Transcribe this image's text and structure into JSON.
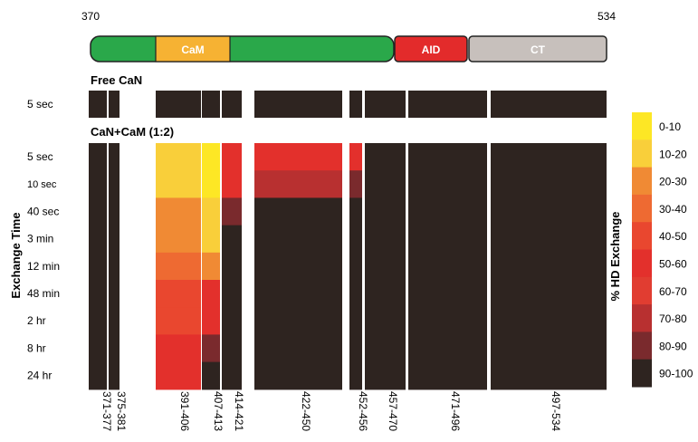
{
  "domain_bar": {
    "start_label": "370",
    "end_label": "534",
    "segments": [
      {
        "name": "",
        "color": "#2aa84a",
        "from": 370,
        "to": 458
      },
      {
        "name": "CaM",
        "color": "#f6b233",
        "from": 391,
        "to": 414
      },
      {
        "name": "AID",
        "color": "#e32b2b",
        "from": 458,
        "to": 481
      },
      {
        "name": "CT",
        "color": "#c7c0bc",
        "from": 481,
        "to": 534
      }
    ]
  },
  "sections": {
    "free_title": "Free CaN",
    "complex_title": "CaN+CaM (1:2)"
  },
  "axis": {
    "ylabel": "Exchange Time",
    "free_times": [
      "5 sec"
    ],
    "complex_times": [
      "5 sec",
      "10 sec",
      "40 sec",
      "3 min",
      "12 min",
      "48 min",
      "2 hr",
      "8 hr",
      "24 hr"
    ]
  },
  "peptides": [
    "371-377",
    "375-381",
    "391-406",
    "407-413",
    "414-421",
    "422-450",
    "452-456",
    "457-470",
    "471-496",
    "497-534"
  ],
  "legend": {
    "title": "% HD Exchange",
    "bins": [
      {
        "label": "0-10",
        "color": "#fde725"
      },
      {
        "label": "10-20",
        "color": "#f9cf3a"
      },
      {
        "label": "20-30",
        "color": "#f08a34"
      },
      {
        "label": "30-40",
        "color": "#ee6a32"
      },
      {
        "label": "40-50",
        "color": "#e9472f"
      },
      {
        "label": "50-60",
        "color": "#e3302c"
      },
      {
        "label": "60-70",
        "color": "#e13d31"
      },
      {
        "label": "70-80",
        "color": "#b83030"
      },
      {
        "label": "80-90",
        "color": "#7a2a2d"
      },
      {
        "label": "90-100",
        "color": "#2e2420"
      }
    ]
  },
  "chart_data": {
    "type": "heatmap",
    "x": [
      "371-377",
      "375-381",
      "391-406",
      "407-413",
      "414-421",
      "422-450",
      "452-456",
      "457-470",
      "471-496",
      "497-534"
    ],
    "free_can": {
      "y": [
        "5 sec"
      ],
      "bins": [
        [
          9,
          9,
          9,
          9,
          9,
          9,
          9,
          9,
          9,
          9
        ]
      ],
      "present": [
        [
          true,
          true,
          true,
          true,
          true,
          true,
          true,
          true,
          true,
          true
        ]
      ]
    },
    "can_cam": {
      "y": [
        "5 sec",
        "10 sec",
        "40 sec",
        "3 min",
        "12 min",
        "48 min",
        "2 hr",
        "8 hr",
        "24 hr"
      ],
      "bins": [
        [
          9,
          9,
          1,
          0,
          5,
          5,
          5,
          9,
          9,
          9
        ],
        [
          9,
          9,
          1,
          0,
          5,
          7,
          8,
          9,
          9,
          9
        ],
        [
          9,
          9,
          2,
          1,
          8,
          9,
          9,
          9,
          9,
          9
        ],
        [
          9,
          9,
          2,
          1,
          9,
          9,
          9,
          9,
          9,
          9
        ],
        [
          9,
          9,
          3,
          2,
          9,
          9,
          9,
          9,
          9,
          9
        ],
        [
          9,
          9,
          4,
          5,
          9,
          9,
          9,
          9,
          9,
          9
        ],
        [
          9,
          9,
          4,
          5,
          9,
          9,
          9,
          9,
          9,
          9
        ],
        [
          9,
          9,
          5,
          8,
          9,
          9,
          9,
          9,
          9,
          9
        ],
        [
          9,
          9,
          5,
          9,
          9,
          9,
          9,
          9,
          9,
          9
        ]
      ],
      "present": [
        [
          true,
          true,
          true,
          true,
          true,
          true,
          true,
          true,
          true,
          true
        ]
      ],
      "absent_columns": []
    }
  }
}
